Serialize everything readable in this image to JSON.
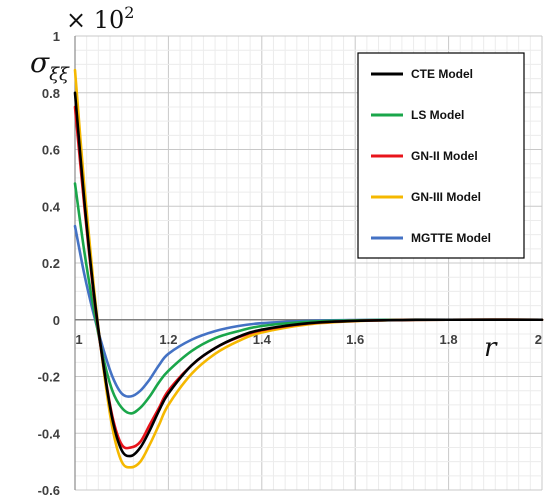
{
  "chart_data": {
    "type": "line",
    "ylabel": "σ",
    "ylabel_subscript": "ξξ",
    "xlabel": "r",
    "scale_factor": {
      "prefix": "× 10",
      "exponent": "2"
    },
    "xlim": [
      1,
      2
    ],
    "ylim": [
      -0.6,
      1
    ],
    "x_ticks": [
      1,
      1.2,
      1.4,
      1.6,
      1.8,
      2
    ],
    "x_tick_labels": [
      "1",
      "1.2",
      "1.4",
      "1.6",
      "1.8",
      "2"
    ],
    "y_ticks": [
      -0.6,
      -0.4,
      -0.2,
      0,
      0.2,
      0.4,
      0.6,
      0.8,
      1
    ],
    "y_tick_labels": [
      "-0.6",
      "-0.4",
      "-0.2",
      "0",
      "0.2",
      "0.4",
      "0.6",
      "0.8",
      "1"
    ],
    "grid": true,
    "legend_position": "top-right",
    "x": [
      1.0,
      1.02,
      1.04,
      1.06,
      1.08,
      1.1,
      1.12,
      1.14,
      1.16,
      1.18,
      1.2,
      1.25,
      1.3,
      1.35,
      1.4,
      1.5,
      1.6,
      1.7,
      1.8,
      2.0
    ],
    "series": [
      {
        "name": "CTE Model",
        "color": "#000000",
        "values": [
          0.8,
          0.42,
          0.1,
          -0.15,
          -0.35,
          -0.46,
          -0.48,
          -0.45,
          -0.39,
          -0.32,
          -0.26,
          -0.16,
          -0.1,
          -0.06,
          -0.035,
          -0.012,
          -0.004,
          -0.001,
          0,
          0
        ]
      },
      {
        "name": "LS Model",
        "color": "#1aa64a",
        "values": [
          0.48,
          0.24,
          0.04,
          -0.13,
          -0.25,
          -0.31,
          -0.33,
          -0.31,
          -0.27,
          -0.22,
          -0.18,
          -0.11,
          -0.065,
          -0.04,
          -0.022,
          -0.007,
          -0.002,
          0,
          0,
          0
        ]
      },
      {
        "name": "GN-II Model",
        "color": "#e8141b",
        "values": [
          0.75,
          0.4,
          0.09,
          -0.15,
          -0.34,
          -0.44,
          -0.45,
          -0.43,
          -0.37,
          -0.31,
          -0.25,
          -0.16,
          -0.1,
          -0.062,
          -0.037,
          -0.013,
          -0.004,
          -0.001,
          0,
          0
        ]
      },
      {
        "name": "GN-III Model",
        "color": "#f5b800",
        "values": [
          0.88,
          0.47,
          0.12,
          -0.16,
          -0.38,
          -0.5,
          -0.52,
          -0.5,
          -0.44,
          -0.37,
          -0.3,
          -0.19,
          -0.12,
          -0.075,
          -0.045,
          -0.016,
          -0.005,
          -0.001,
          0,
          0
        ]
      },
      {
        "name": "MGTTE Model",
        "color": "#4472c4",
        "values": [
          0.33,
          0.16,
          0.02,
          -0.1,
          -0.2,
          -0.26,
          -0.27,
          -0.25,
          -0.21,
          -0.16,
          -0.12,
          -0.07,
          -0.04,
          -0.022,
          -0.012,
          -0.004,
          -0.001,
          0,
          0,
          0
        ]
      }
    ]
  }
}
